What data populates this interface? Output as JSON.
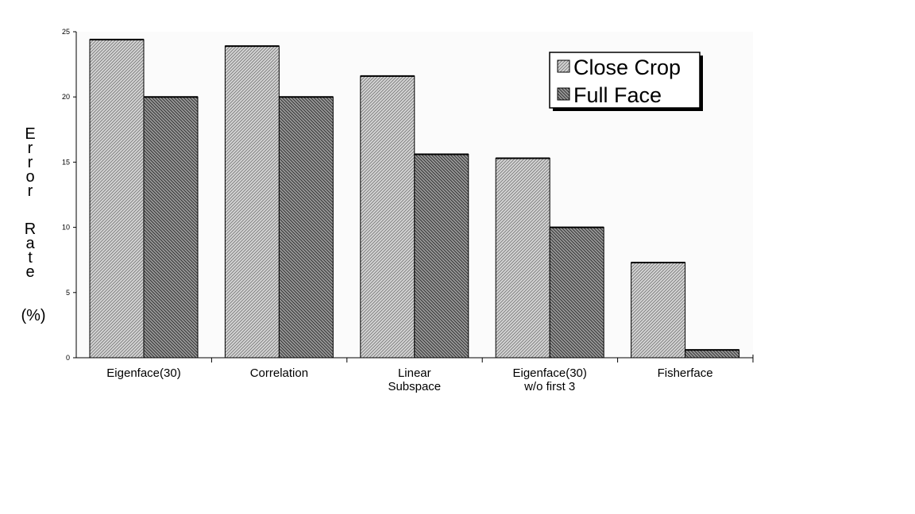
{
  "chart_data": {
    "type": "bar",
    "title": "",
    "xlabel": "",
    "ylabel": "Error Rate",
    "ylabel_unit": "(%)",
    "ylim": [
      0,
      25
    ],
    "yticks": [
      "0",
      "5",
      "10",
      "15",
      "20",
      "25"
    ],
    "grid": false,
    "legend_position": "top-right",
    "categories": [
      [
        "Eigenface(30)"
      ],
      [
        "Correlation"
      ],
      [
        "Linear",
        "Subspace"
      ],
      [
        "Eigenface(30)",
        "w/o first 3"
      ],
      [
        "Fisherface"
      ]
    ],
    "series": [
      {
        "name": "Close Crop",
        "pattern": "light-hatch",
        "values": [
          24.4,
          23.9,
          21.6,
          15.3,
          7.3
        ]
      },
      {
        "name": "Full Face",
        "pattern": "dark-hatch",
        "values": [
          20.0,
          20.0,
          15.6,
          10.0,
          0.6
        ]
      }
    ],
    "colors": {
      "light_fill": "#c8c8c8",
      "dark_fill": "#8a8a8a",
      "stroke": "#000000"
    }
  }
}
